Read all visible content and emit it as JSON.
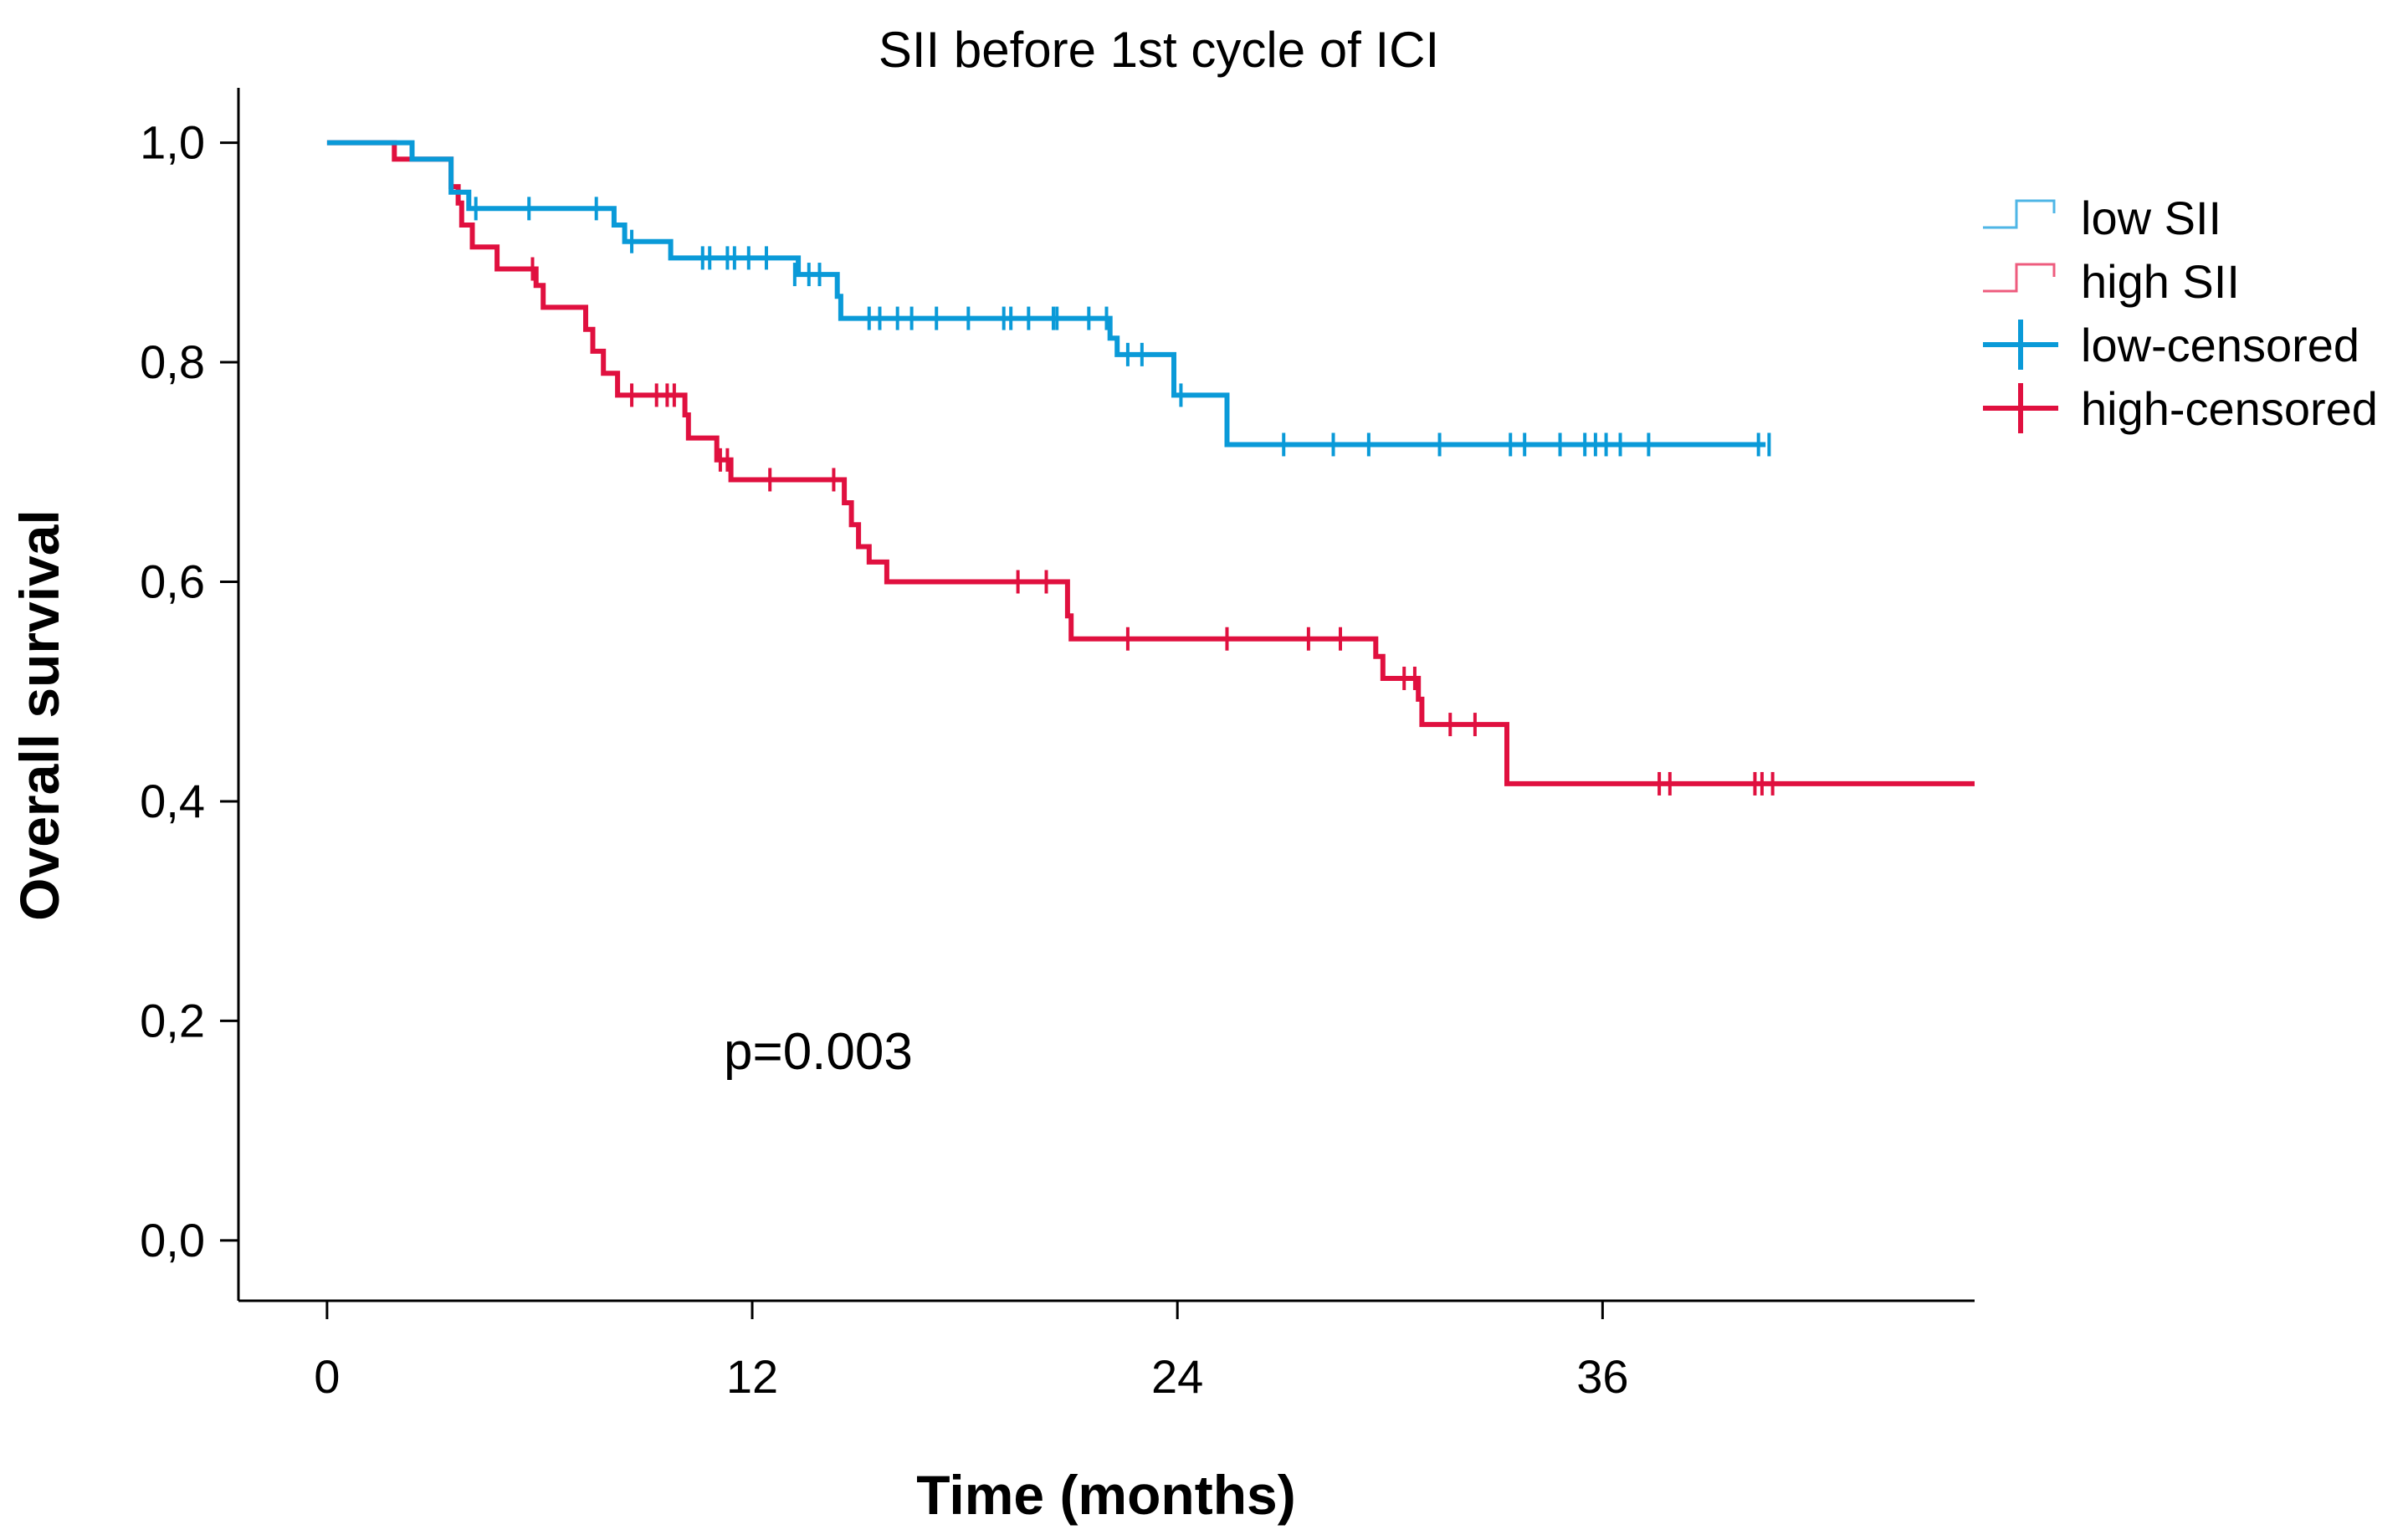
{
  "chart_data": {
    "type": "line",
    "title": "SII before 1st cycle of ICI",
    "xlabel": "Time (months)",
    "ylabel": "Overall survival",
    "xlim": [
      -2.5,
      46.5
    ],
    "ylim": [
      -0.055,
      1.05
    ],
    "x_ticks": [
      0,
      12,
      24,
      36
    ],
    "x_tick_labels": [
      "0",
      "12",
      "24",
      "36"
    ],
    "y_ticks": [
      0,
      0.2,
      0.4,
      0.6,
      0.8,
      1.0
    ],
    "y_tick_labels": [
      "0,0",
      "0,2",
      "0,4",
      "0,6",
      "0,8",
      "1,0"
    ],
    "annotation": "p=0.003",
    "legend_position": "top-right",
    "legend": [
      "low SII",
      "high SII",
      "low-censored",
      "high-censored"
    ],
    "colors": {
      "low": "#0a9ad8",
      "high": "#e0103f",
      "legend_low_step": "#4fb6e6",
      "legend_high_step": "#ee5c7e"
    },
    "series": [
      {
        "name": "low SII",
        "steps": [
          [
            0,
            1.0
          ],
          [
            2.4,
            0.985
          ],
          [
            3.5,
            0.955
          ],
          [
            4.0,
            0.94
          ],
          [
            8.1,
            0.925
          ],
          [
            8.4,
            0.91
          ],
          [
            9.7,
            0.895
          ],
          [
            13.3,
            0.88
          ],
          [
            14.4,
            0.86
          ],
          [
            14.5,
            0.84
          ],
          [
            22.1,
            0.822
          ],
          [
            22.3,
            0.807
          ],
          [
            23.9,
            0.77
          ],
          [
            25.4,
            0.725
          ],
          [
            40.6,
            0.725
          ]
        ],
        "censored": [
          [
            4.2,
            0.94
          ],
          [
            5.7,
            0.94
          ],
          [
            7.6,
            0.94
          ],
          [
            8.6,
            0.91
          ],
          [
            10.6,
            0.895
          ],
          [
            10.8,
            0.895
          ],
          [
            11.3,
            0.895
          ],
          [
            11.5,
            0.895
          ],
          [
            11.9,
            0.895
          ],
          [
            12.4,
            0.895
          ],
          [
            13.2,
            0.88
          ],
          [
            13.6,
            0.88
          ],
          [
            13.9,
            0.88
          ],
          [
            15.3,
            0.84
          ],
          [
            15.6,
            0.84
          ],
          [
            16.1,
            0.84
          ],
          [
            16.5,
            0.84
          ],
          [
            17.2,
            0.84
          ],
          [
            18.1,
            0.84
          ],
          [
            19.1,
            0.84
          ],
          [
            19.3,
            0.84
          ],
          [
            19.8,
            0.84
          ],
          [
            20.5,
            0.84
          ],
          [
            20.6,
            0.84
          ],
          [
            21.5,
            0.84
          ],
          [
            22.0,
            0.84
          ],
          [
            22.6,
            0.807
          ],
          [
            23.0,
            0.807
          ],
          [
            24.1,
            0.77
          ],
          [
            27.0,
            0.725
          ],
          [
            28.4,
            0.725
          ],
          [
            29.4,
            0.725
          ],
          [
            31.4,
            0.725
          ],
          [
            33.4,
            0.725
          ],
          [
            33.8,
            0.725
          ],
          [
            34.8,
            0.725
          ],
          [
            35.5,
            0.725
          ],
          [
            35.8,
            0.725
          ],
          [
            36.1,
            0.725
          ],
          [
            36.5,
            0.725
          ],
          [
            37.3,
            0.725
          ],
          [
            40.4,
            0.725
          ],
          [
            40.7,
            0.725
          ]
        ]
      },
      {
        "name": "high SII",
        "steps": [
          [
            0,
            1.0
          ],
          [
            1.9,
            0.985
          ],
          [
            3.5,
            0.96
          ],
          [
            3.7,
            0.945
          ],
          [
            3.8,
            0.925
          ],
          [
            4.1,
            0.905
          ],
          [
            4.8,
            0.885
          ],
          [
            5.9,
            0.87
          ],
          [
            6.1,
            0.85
          ],
          [
            7.3,
            0.83
          ],
          [
            7.5,
            0.81
          ],
          [
            7.8,
            0.79
          ],
          [
            8.2,
            0.77
          ],
          [
            10.1,
            0.752
          ],
          [
            10.2,
            0.731
          ],
          [
            11.0,
            0.711
          ],
          [
            11.4,
            0.693
          ],
          [
            14.6,
            0.672
          ],
          [
            14.8,
            0.652
          ],
          [
            15.0,
            0.632
          ],
          [
            15.3,
            0.618
          ],
          [
            15.8,
            0.6
          ],
          [
            20.9,
            0.569
          ],
          [
            21.0,
            0.548
          ],
          [
            29.6,
            0.532
          ],
          [
            29.8,
            0.512
          ],
          [
            30.8,
            0.493
          ],
          [
            30.9,
            0.47
          ],
          [
            33.3,
            0.416
          ],
          [
            46.5,
            0.416
          ]
        ],
        "censored": [
          [
            5.8,
            0.885
          ],
          [
            8.6,
            0.77
          ],
          [
            9.3,
            0.77
          ],
          [
            9.6,
            0.77
          ],
          [
            9.8,
            0.77
          ],
          [
            11.1,
            0.711
          ],
          [
            11.3,
            0.711
          ],
          [
            12.5,
            0.693
          ],
          [
            14.3,
            0.693
          ],
          [
            19.5,
            0.6
          ],
          [
            20.3,
            0.6
          ],
          [
            22.6,
            0.548
          ],
          [
            25.4,
            0.548
          ],
          [
            27.7,
            0.548
          ],
          [
            28.6,
            0.548
          ],
          [
            30.4,
            0.512
          ],
          [
            30.7,
            0.512
          ],
          [
            31.7,
            0.47
          ],
          [
            32.4,
            0.47
          ],
          [
            37.6,
            0.416
          ],
          [
            37.9,
            0.416
          ],
          [
            40.3,
            0.416
          ],
          [
            40.5,
            0.416
          ],
          [
            40.8,
            0.416
          ]
        ]
      }
    ]
  }
}
